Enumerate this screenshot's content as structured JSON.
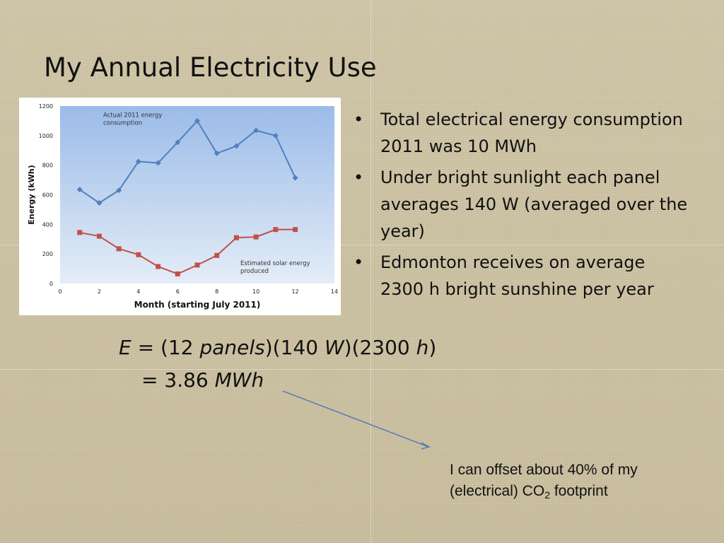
{
  "slide": {
    "title": "My Annual Electricity Use",
    "bullets": [
      "Total electrical energy consumption 2011 was 10 MWh",
      "Under bright sunlight each panel averages 140 W (averaged over the year)",
      "Edmonton receives on average 2300 h bright sunshine per year"
    ],
    "bullet_glyph": "•",
    "equation": {
      "lhs": "E",
      "eq1": "=",
      "t1_open": "(12 ",
      "t1_var": "panels",
      "t1_close": ")",
      "t2_open": "(140 ",
      "t2_var": "W",
      "t2_close": ")",
      "t3_open": "(2300 ",
      "t3_var": "h",
      "t3_close": ")",
      "eq2": "=",
      "result_num": "3.86 ",
      "result_unit": "MWh"
    },
    "note": {
      "text": "I can offset about 40% of my (electrical) CO",
      "sub": "2",
      "tail": " footprint"
    }
  },
  "chart_data": {
    "type": "line",
    "title": "",
    "xlabel": "Month (starting July 2011)",
    "ylabel": "Energy (kWh)",
    "xlim": [
      0,
      14
    ],
    "ylim": [
      0,
      1200
    ],
    "xticks": [
      0,
      2,
      4,
      6,
      8,
      10,
      12,
      14
    ],
    "yticks": [
      0,
      200,
      400,
      600,
      800,
      1000,
      1200
    ],
    "grid": false,
    "legend": "none",
    "series": [
      {
        "label": "Actual 2011  energy consumption",
        "color": "#4f81bd",
        "marker": "diamond",
        "x": [
          1,
          2,
          3,
          4,
          5,
          6,
          7,
          8,
          9,
          10,
          11,
          12
        ],
        "y": [
          635,
          545,
          630,
          825,
          815,
          955,
          1100,
          880,
          930,
          1035,
          1000,
          715
        ]
      },
      {
        "label": "Estimated solar energy produced",
        "color": "#c0504d",
        "marker": "square",
        "x": [
          1,
          2,
          3,
          4,
          5,
          6,
          7,
          8,
          9,
          10,
          11,
          12
        ],
        "y": [
          345,
          320,
          235,
          195,
          115,
          65,
          125,
          190,
          310,
          315,
          365,
          365
        ]
      }
    ],
    "annotations": [
      {
        "text_lines": [
          "Actual 2011  energy",
          "consumption"
        ],
        "x": 2.2,
        "y": 1125
      },
      {
        "text_lines": [
          "Estimated solar energy",
          "produced"
        ],
        "x": 9.2,
        "y": 125
      }
    ],
    "plot_background": [
      "#9bbbe8",
      "#e4edf7"
    ]
  }
}
